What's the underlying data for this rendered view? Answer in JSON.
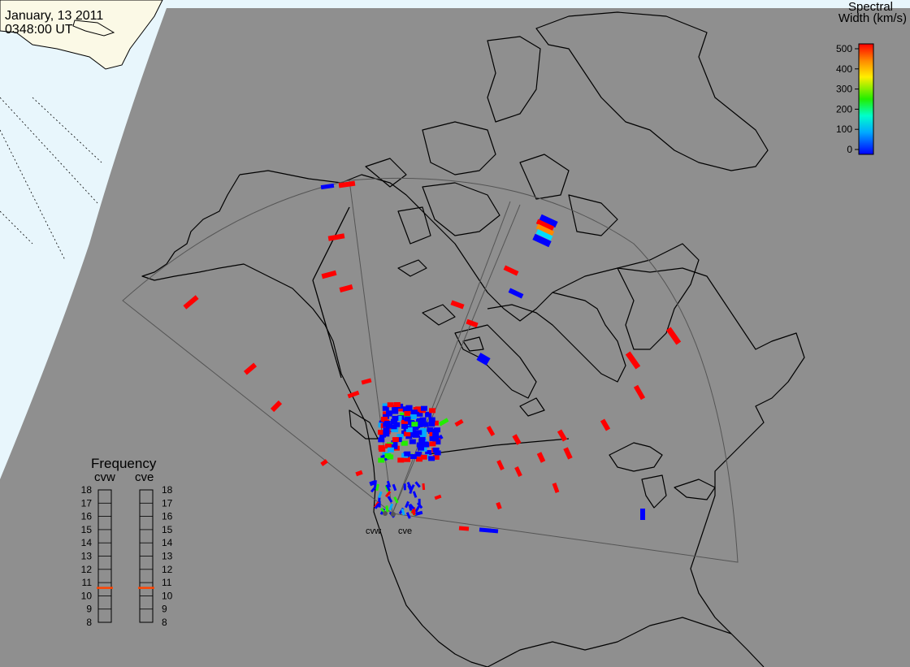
{
  "header": {
    "date": "January, 13 2011",
    "time": "0348:00 UT"
  },
  "colorbar": {
    "title_line1": "Spectral",
    "title_line2": "Width (km/s)",
    "ticks": [
      "500",
      "400",
      "300",
      "200",
      "100",
      "0"
    ]
  },
  "frequency": {
    "title": "Frequency",
    "radar_left": "cvw",
    "radar_right": "cve",
    "ticks": [
      "18",
      "17",
      "16",
      "15",
      "14",
      "13",
      "12",
      "11",
      "10",
      "9",
      "8"
    ],
    "cvw_value_mhz": 10.6,
    "cve_value_mhz": 10.6,
    "marker_color": "#ff4400"
  },
  "radar_labels": {
    "west": "cvw",
    "east": "cve"
  },
  "colors": {
    "earth_dark": "#8f8f8f",
    "sunlit_land": "#fbf9e6",
    "sunlit_ocean": "#e8f6fc",
    "coastline": "#000000",
    "fov_outline": "#555555",
    "high_width": "#ff0000",
    "low_width": "#0000ff"
  }
}
